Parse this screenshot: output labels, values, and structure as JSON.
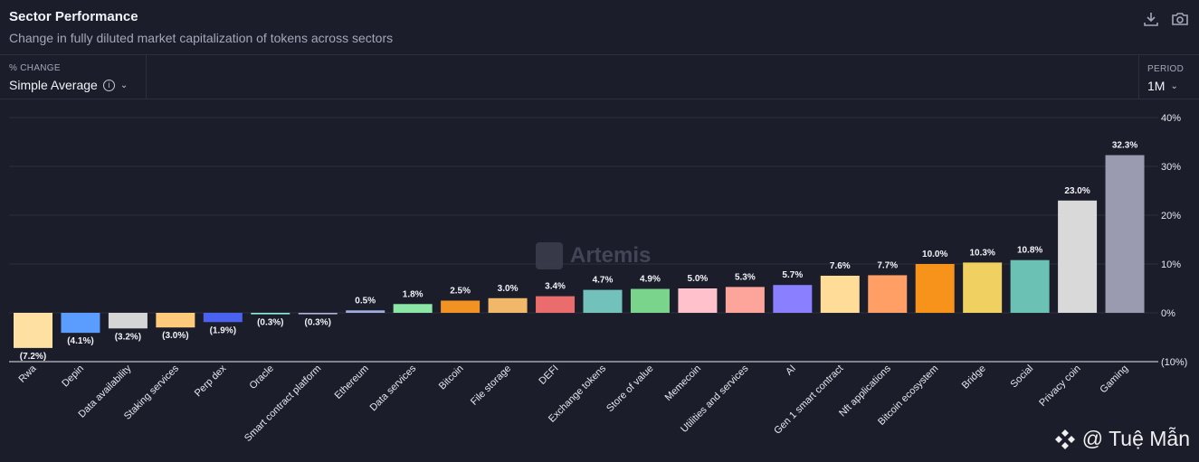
{
  "header": {
    "title": "Sector Performance",
    "subtitle": "Change in fully diluted market capitalization of tokens across sectors",
    "download_icon": "download-icon",
    "camera_icon": "camera-icon"
  },
  "controls": {
    "change_label": "% CHANGE",
    "change_value": "Simple Average",
    "period_label": "PERIOD",
    "period_value": "1M"
  },
  "watermark": {
    "text": "Artemis"
  },
  "credit": {
    "text": "@ Tuệ Mẫn"
  },
  "chart_data": {
    "type": "bar",
    "categories": [
      "Rwa",
      "Depin",
      "Data availability",
      "Staking services",
      "Perp dex",
      "Oracle",
      "Smart contract platform",
      "Ethereum",
      "Data services",
      "Bitcoin",
      "File storage",
      "DEFI",
      "Exchange tokens",
      "Store of value",
      "Memecoin",
      "Utilities and services",
      "AI",
      "Gen 1 smart contract",
      "Nft applications",
      "Bitcoin ecosystem",
      "Bridge",
      "Social",
      "Privacy coin",
      "Gaming"
    ],
    "values": [
      -7.2,
      -4.1,
      -3.2,
      -3.0,
      -1.9,
      -0.3,
      -0.3,
      0.5,
      1.8,
      2.5,
      3.0,
      3.4,
      4.7,
      4.9,
      5.0,
      5.3,
      5.7,
      7.6,
      7.7,
      10.0,
      10.3,
      10.8,
      23.0,
      32.3
    ],
    "data_labels": [
      "(7.2%)",
      "(4.1%)",
      "(3.2%)",
      "(3.0%)",
      "(1.9%)",
      "(0.3%)",
      "(0.3%)",
      "0.5%",
      "1.8%",
      "2.5%",
      "3.0%",
      "3.4%",
      "4.7%",
      "4.9%",
      "5.0%",
      "5.3%",
      "5.7%",
      "7.6%",
      "7.7%",
      "10.0%",
      "10.3%",
      "10.8%",
      "23.0%",
      "32.3%"
    ],
    "colors": [
      "#ffe0a3",
      "#5b9cff",
      "#d5d5d5",
      "#ffcb7a",
      "#4b62f0",
      "#8af0d6",
      "#b0b4d8",
      "#9db0e0",
      "#8ce6a6",
      "#f29222",
      "#f2b86a",
      "#ea6c6c",
      "#72c2bb",
      "#7ad48c",
      "#ffc2cc",
      "#fda59a",
      "#8a80ff",
      "#ffdd99",
      "#ff9f66",
      "#f7931a",
      "#f0d060",
      "#6cc1b5",
      "#d9d9d9",
      "#9a9bb0"
    ],
    "y_ticks": [
      "40%",
      "30%",
      "20%",
      "10%",
      "0%",
      "(10%)"
    ],
    "ylim": [
      -10,
      40
    ],
    "grid": true,
    "legend": "none"
  }
}
